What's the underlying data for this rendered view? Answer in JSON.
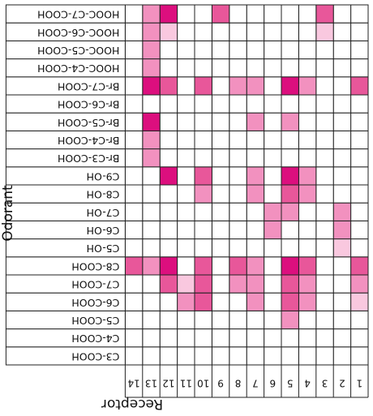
{
  "chart_data": {
    "type": "heatmap",
    "xlabel": "Receptor",
    "ylabel": "Odorant",
    "columns": [
      "1",
      "2",
      "3",
      "4",
      "5",
      "6",
      "7",
      "8",
      "9",
      "10",
      "11",
      "12",
      "13",
      "14"
    ],
    "rows": [
      "C3-COOH",
      "C4-COOH",
      "C5-COOH",
      "C6-COOH",
      "C7-COOH",
      "C8-COOH",
      "C5-OH",
      "C6-OH",
      "C7-OH",
      "C8-OH",
      "C9-OH",
      "Br-C3-COOH",
      "Br-C4-COOH",
      "Br-C5-COOH",
      "Br-C6-COOH",
      "Br-C7-COOH",
      "HOOC-C4-COOH",
      "HOOC-C5-COOH",
      "HOOC-C6-COOH",
      "HOOC-C7-COOH"
    ],
    "scale": "0 = no response (white) to 4 = strongest response (magenta)",
    "values": [
      [
        0,
        0,
        0,
        0,
        0,
        0,
        0,
        0,
        0,
        0,
        0,
        0,
        0,
        0
      ],
      [
        0,
        0,
        0,
        0,
        0,
        0,
        0,
        0,
        0,
        0,
        0,
        0,
        0,
        0
      ],
      [
        0,
        0,
        0,
        0,
        2,
        0,
        0,
        0,
        0,
        0,
        0,
        0,
        0,
        0
      ],
      [
        1,
        0,
        0,
        2,
        3,
        0,
        2,
        0,
        0,
        3,
        2,
        0,
        0,
        0
      ],
      [
        2,
        0,
        0,
        2,
        3,
        0,
        2,
        2,
        0,
        3,
        1,
        3,
        0,
        0
      ],
      [
        3,
        0,
        0,
        3,
        4,
        0,
        2,
        3,
        0,
        3,
        0,
        4,
        2,
        3
      ],
      [
        0,
        1,
        0,
        0,
        0,
        0,
        0,
        0,
        0,
        0,
        0,
        0,
        0,
        0
      ],
      [
        0,
        2,
        0,
        0,
        0,
        2,
        0,
        0,
        0,
        0,
        0,
        0,
        0,
        0
      ],
      [
        0,
        2,
        0,
        0,
        2,
        2,
        0,
        0,
        0,
        0,
        0,
        0,
        0,
        0
      ],
      [
        0,
        0,
        0,
        2,
        3,
        0,
        2,
        0,
        0,
        2,
        0,
        0,
        0,
        0
      ],
      [
        0,
        0,
        0,
        2,
        4,
        0,
        2,
        0,
        0,
        3,
        0,
        4,
        0,
        0
      ],
      [
        0,
        0,
        0,
        0,
        0,
        0,
        0,
        0,
        0,
        0,
        0,
        0,
        2,
        0
      ],
      [
        0,
        0,
        0,
        0,
        0,
        0,
        0,
        0,
        0,
        0,
        0,
        0,
        2,
        0
      ],
      [
        0,
        0,
        0,
        0,
        2,
        0,
        2,
        0,
        0,
        0,
        0,
        0,
        4,
        0
      ],
      [
        0,
        0,
        0,
        0,
        0,
        0,
        0,
        0,
        0,
        0,
        0,
        0,
        0,
        0
      ],
      [
        3,
        0,
        0,
        2,
        4,
        0,
        2,
        2,
        0,
        3,
        0,
        3,
        4,
        0
      ],
      [
        0,
        0,
        0,
        0,
        0,
        0,
        0,
        0,
        0,
        0,
        0,
        0,
        2,
        0
      ],
      [
        0,
        0,
        0,
        0,
        0,
        0,
        0,
        0,
        0,
        0,
        0,
        0,
        2,
        0
      ],
      [
        0,
        0,
        1,
        0,
        0,
        0,
        0,
        0,
        0,
        0,
        0,
        1,
        2,
        0
      ],
      [
        0,
        0,
        3,
        0,
        0,
        0,
        0,
        0,
        3,
        0,
        0,
        4,
        2,
        0
      ]
    ]
  },
  "colors": {
    "level_0": "#ffffff",
    "level_1": "#f9c8df",
    "level_2": "#f291bf",
    "level_3": "#e8579a",
    "level_4": "#dc0f7e",
    "grid": "#222222"
  }
}
